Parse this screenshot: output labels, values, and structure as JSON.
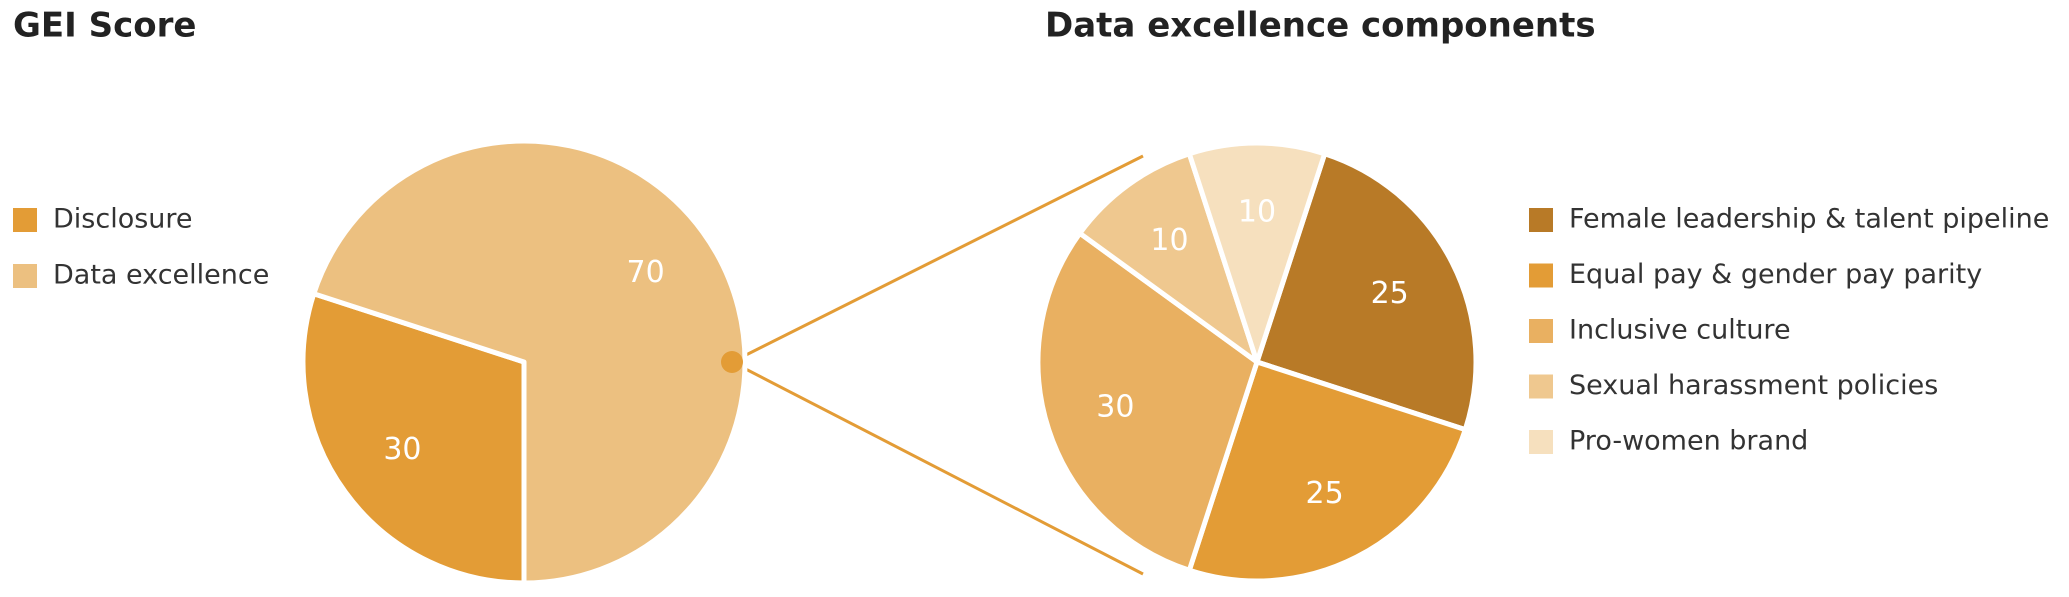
{
  "chart_data": [
    {
      "type": "pie",
      "title": "GEI Score",
      "categories": [
        "Disclosure",
        "Data excellence"
      ],
      "values": [
        30,
        70
      ],
      "colors": [
        "#e39c36",
        "#ecc080"
      ]
    },
    {
      "type": "pie",
      "title": "Data excellence components",
      "categories": [
        "Female leadership & talent pipeline",
        "Equal pay & gender pay parity",
        "Inclusive culture",
        "Sexual harassment policies",
        "Pro-women brand"
      ],
      "values": [
        25,
        25,
        30,
        10,
        10
      ],
      "colors": [
        "#b87a27",
        "#e39c36",
        "#e9b061",
        "#efc88f",
        "#f6e0be"
      ]
    }
  ]
}
